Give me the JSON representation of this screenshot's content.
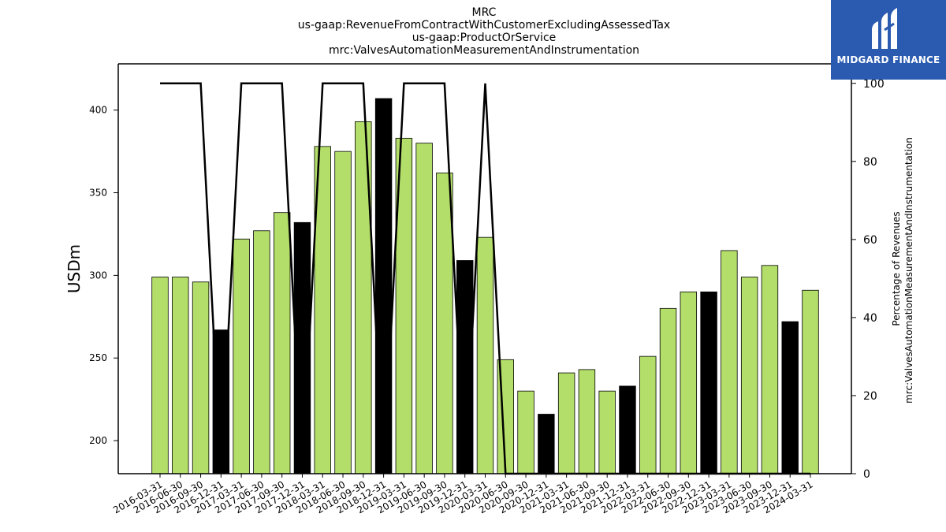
{
  "chart_data": {
    "type": "bar",
    "title_lines": [
      "MRC",
      "us-gaap:RevenueFromContractWithCustomerExcludingAssessedTax",
      "us-gaap:ProductOrService",
      "mrc:ValvesAutomationMeasurementAndInstrumentation"
    ],
    "ylabel": "USDm",
    "ylabel_right_lines": [
      "Percentage of Revenues",
      "mrc:ValvesAutomationMeasurementAndInstrumentation"
    ],
    "categories": [
      "2016-03-31",
      "2016-06-30",
      "2016-09-30",
      "2016-12-31",
      "2017-03-31",
      "2017-06-30",
      "2017-09-30",
      "2017-12-31",
      "2018-03-31",
      "2018-06-30",
      "2018-09-30",
      "2018-12-31",
      "2019-03-31",
      "2019-06-30",
      "2019-09-30",
      "2019-12-31",
      "2020-03-31",
      "2020-06-30",
      "2020-09-30",
      "2020-12-31",
      "2021-03-31",
      "2021-06-30",
      "2021-09-30",
      "2021-12-31",
      "2022-03-31",
      "2022-06-30",
      "2022-09-30",
      "2022-12-31",
      "2023-03-31",
      "2023-06-30",
      "2023-09-30",
      "2023-12-31",
      "2024-03-31"
    ],
    "values": [
      299,
      299,
      296,
      267,
      322,
      327,
      338,
      332,
      378,
      375,
      393,
      407,
      383,
      380,
      362,
      309,
      323,
      249,
      230,
      216,
      241,
      243,
      230,
      233,
      251,
      280,
      290,
      290,
      315,
      299,
      306,
      272,
      291
    ],
    "bar_colors": [
      "#b3de69",
      "#b3de69",
      "#b3de69",
      "#000000",
      "#b3de69",
      "#b3de69",
      "#b3de69",
      "#000000",
      "#b3de69",
      "#b3de69",
      "#b3de69",
      "#000000",
      "#b3de69",
      "#b3de69",
      "#b3de69",
      "#000000",
      "#b3de69",
      "#b3de69",
      "#b3de69",
      "#000000",
      "#b3de69",
      "#b3de69",
      "#b3de69",
      "#000000",
      "#b3de69",
      "#b3de69",
      "#b3de69",
      "#000000",
      "#b3de69",
      "#b3de69",
      "#b3de69",
      "#000000",
      "#b3de69"
    ],
    "line_values": [
      100,
      100,
      100,
      0,
      100,
      100,
      100,
      0,
      100,
      100,
      100,
      0,
      100,
      100,
      100,
      0,
      100,
      0,
      0,
      0,
      0,
      0,
      0,
      0,
      0,
      0,
      0,
      0,
      0,
      0,
      0,
      0,
      0
    ],
    "ylim": [
      180,
      428
    ],
    "yticks": [
      200,
      250,
      300,
      350,
      400
    ],
    "ylim_right": [
      0,
      105
    ],
    "yticks_right": [
      0,
      20,
      40,
      60,
      80,
      100
    ],
    "grid": false
  },
  "logo": {
    "text": "MIDGARD FINANCE"
  }
}
